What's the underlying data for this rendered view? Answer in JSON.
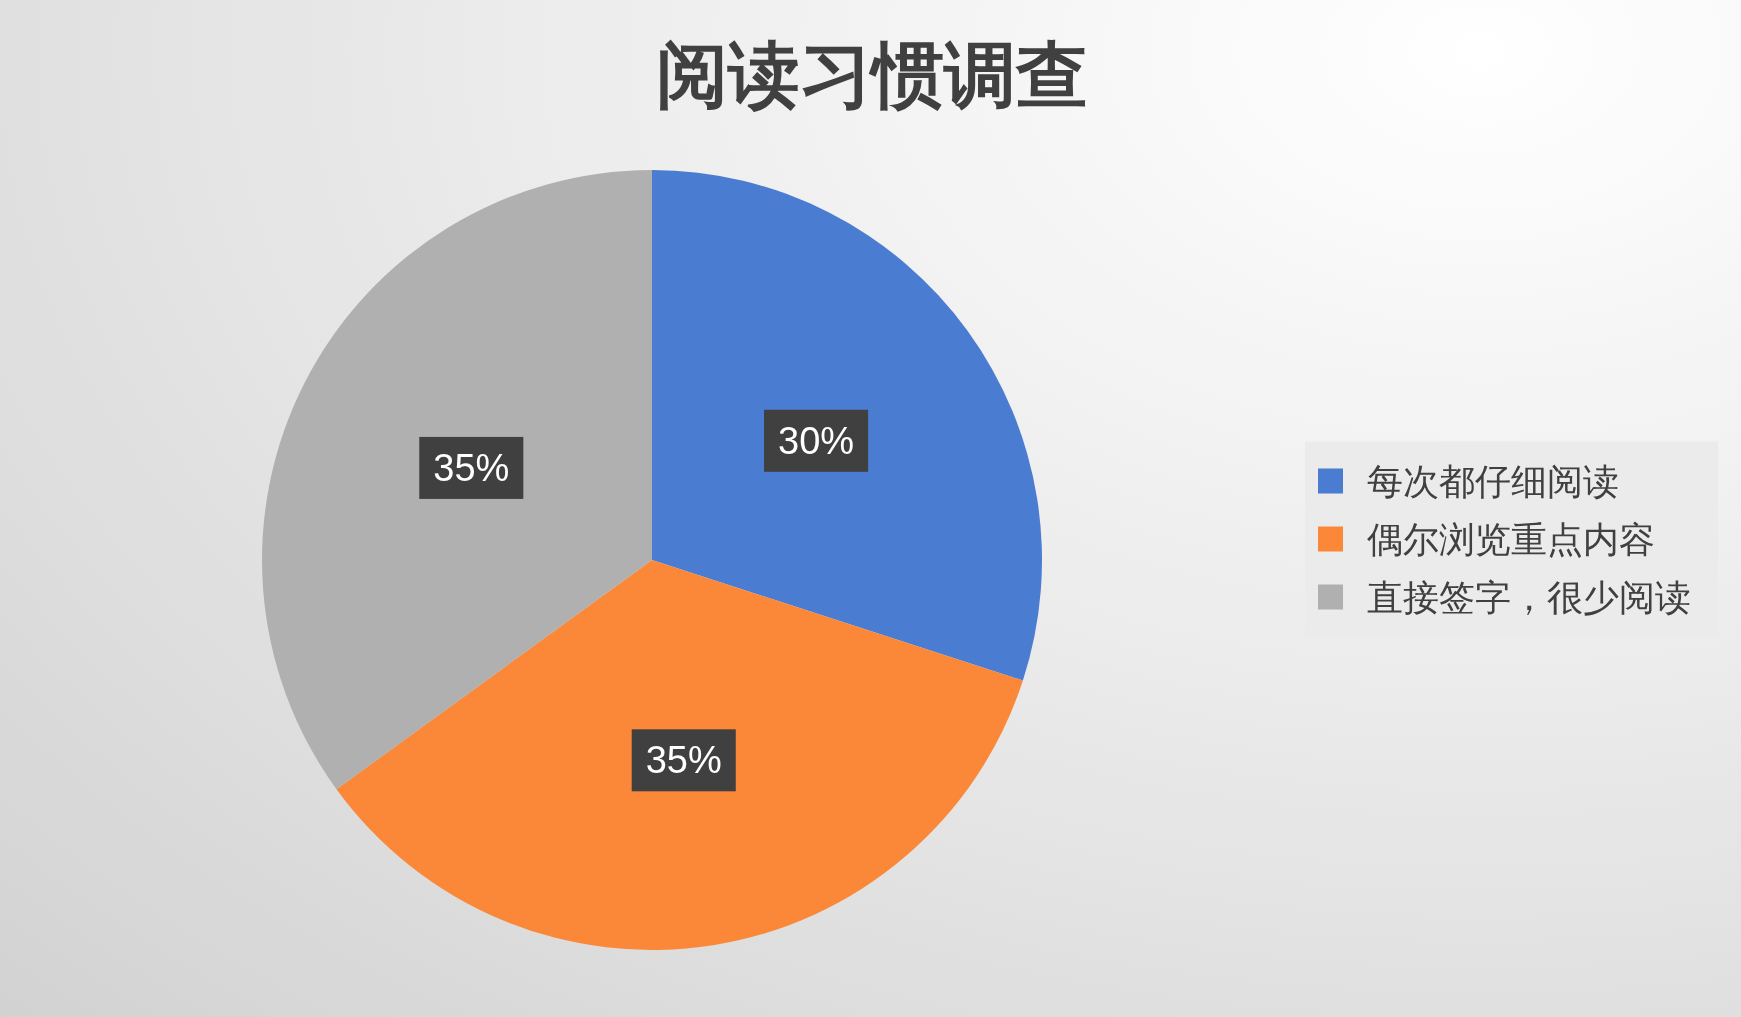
{
  "chart_data": {
    "type": "pie",
    "title": "阅读习惯调查",
    "categories": [
      "每次都仔细阅读",
      "偶尔浏览重点内容",
      "直接签字，很少阅读"
    ],
    "values": [
      30,
      35,
      35
    ],
    "colors": [
      "#4a7dd1",
      "#fb8838",
      "#b0b0b0"
    ],
    "value_labels": [
      "30%",
      "35%",
      "35%"
    ],
    "legend": "right"
  }
}
